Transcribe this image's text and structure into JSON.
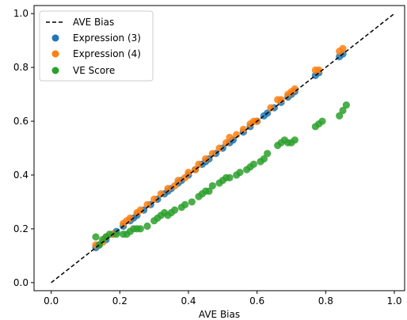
{
  "chart_data": {
    "type": "scatter",
    "title": "",
    "xlabel": "AVE Bias",
    "ylabel": "",
    "xlim": [
      -0.05,
      1.03
    ],
    "ylim": [
      -0.03,
      1.03
    ],
    "xticks": [
      "0.0",
      "0.2",
      "0.4",
      "0.6",
      "0.8",
      "1.0"
    ],
    "yticks": [
      "0.0",
      "0.2",
      "0.4",
      "0.6",
      "0.8",
      "1.0"
    ],
    "grid": false,
    "legend_position": "top-left",
    "reference_line": {
      "name": "AVE Bias",
      "style": "dashed",
      "color": "#000000",
      "x": [
        0.0,
        1.0
      ],
      "y": [
        0.0,
        1.0
      ]
    },
    "series": [
      {
        "name": "Expression (3)",
        "color": "#1f77b4",
        "points": [
          [
            0.13,
            0.13
          ],
          [
            0.14,
            0.14
          ],
          [
            0.16,
            0.16
          ],
          [
            0.18,
            0.18
          ],
          [
            0.19,
            0.19
          ],
          [
            0.21,
            0.21
          ],
          [
            0.23,
            0.23
          ],
          [
            0.24,
            0.24
          ],
          [
            0.25,
            0.25
          ],
          [
            0.27,
            0.27
          ],
          [
            0.29,
            0.29
          ],
          [
            0.31,
            0.31
          ],
          [
            0.33,
            0.33
          ],
          [
            0.34,
            0.34
          ],
          [
            0.35,
            0.35
          ],
          [
            0.37,
            0.37
          ],
          [
            0.38,
            0.38
          ],
          [
            0.4,
            0.4
          ],
          [
            0.42,
            0.42
          ],
          [
            0.44,
            0.44
          ],
          [
            0.45,
            0.45
          ],
          [
            0.46,
            0.46
          ],
          [
            0.48,
            0.48
          ],
          [
            0.5,
            0.5
          ],
          [
            0.52,
            0.52
          ],
          [
            0.53,
            0.53
          ],
          [
            0.56,
            0.56
          ],
          [
            0.58,
            0.58
          ],
          [
            0.6,
            0.6
          ],
          [
            0.62,
            0.62
          ],
          [
            0.63,
            0.63
          ],
          [
            0.65,
            0.65
          ],
          [
            0.67,
            0.67
          ],
          [
            0.69,
            0.69
          ],
          [
            0.7,
            0.7
          ],
          [
            0.71,
            0.71
          ],
          [
            0.77,
            0.77
          ],
          [
            0.78,
            0.78
          ],
          [
            0.84,
            0.84
          ],
          [
            0.85,
            0.85
          ]
        ]
      },
      {
        "name": "Expression (4)",
        "color": "#ff7f0e",
        "points": [
          [
            0.13,
            0.14
          ],
          [
            0.15,
            0.15
          ],
          [
            0.16,
            0.17
          ],
          [
            0.18,
            0.18
          ],
          [
            0.21,
            0.22
          ],
          [
            0.22,
            0.23
          ],
          [
            0.23,
            0.24
          ],
          [
            0.25,
            0.26
          ],
          [
            0.26,
            0.27
          ],
          [
            0.28,
            0.29
          ],
          [
            0.3,
            0.31
          ],
          [
            0.32,
            0.33
          ],
          [
            0.34,
            0.35
          ],
          [
            0.36,
            0.36
          ],
          [
            0.37,
            0.38
          ],
          [
            0.39,
            0.39
          ],
          [
            0.4,
            0.41
          ],
          [
            0.42,
            0.42
          ],
          [
            0.43,
            0.44
          ],
          [
            0.45,
            0.46
          ],
          [
            0.47,
            0.48
          ],
          [
            0.49,
            0.5
          ],
          [
            0.51,
            0.52
          ],
          [
            0.52,
            0.54
          ],
          [
            0.54,
            0.55
          ],
          [
            0.56,
            0.57
          ],
          [
            0.58,
            0.59
          ],
          [
            0.59,
            0.6
          ],
          [
            0.6,
            0.6
          ],
          [
            0.64,
            0.65
          ],
          [
            0.66,
            0.68
          ],
          [
            0.67,
            0.68
          ],
          [
            0.69,
            0.7
          ],
          [
            0.7,
            0.71
          ],
          [
            0.71,
            0.72
          ],
          [
            0.77,
            0.79
          ],
          [
            0.78,
            0.79
          ],
          [
            0.84,
            0.86
          ],
          [
            0.85,
            0.87
          ]
        ]
      },
      {
        "name": "VE Score",
        "color": "#2ca02c",
        "points": [
          [
            0.13,
            0.17
          ],
          [
            0.14,
            0.14
          ],
          [
            0.15,
            0.16
          ],
          [
            0.16,
            0.17
          ],
          [
            0.17,
            0.18
          ],
          [
            0.19,
            0.18
          ],
          [
            0.21,
            0.18
          ],
          [
            0.22,
            0.18
          ],
          [
            0.23,
            0.19
          ],
          [
            0.24,
            0.2
          ],
          [
            0.25,
            0.2
          ],
          [
            0.26,
            0.2
          ],
          [
            0.28,
            0.21
          ],
          [
            0.3,
            0.23
          ],
          [
            0.31,
            0.24
          ],
          [
            0.32,
            0.25
          ],
          [
            0.33,
            0.26
          ],
          [
            0.34,
            0.25
          ],
          [
            0.35,
            0.26
          ],
          [
            0.36,
            0.27
          ],
          [
            0.38,
            0.28
          ],
          [
            0.39,
            0.29
          ],
          [
            0.41,
            0.3
          ],
          [
            0.43,
            0.32
          ],
          [
            0.44,
            0.33
          ],
          [
            0.45,
            0.34
          ],
          [
            0.46,
            0.34
          ],
          [
            0.47,
            0.36
          ],
          [
            0.49,
            0.37
          ],
          [
            0.5,
            0.38
          ],
          [
            0.51,
            0.39
          ],
          [
            0.52,
            0.39
          ],
          [
            0.54,
            0.4
          ],
          [
            0.55,
            0.41
          ],
          [
            0.57,
            0.42
          ],
          [
            0.58,
            0.43
          ],
          [
            0.59,
            0.44
          ],
          [
            0.61,
            0.45
          ],
          [
            0.62,
            0.46
          ],
          [
            0.63,
            0.48
          ],
          [
            0.66,
            0.51
          ],
          [
            0.67,
            0.52
          ],
          [
            0.68,
            0.53
          ],
          [
            0.69,
            0.52
          ],
          [
            0.7,
            0.52
          ],
          [
            0.71,
            0.53
          ],
          [
            0.77,
            0.58
          ],
          [
            0.78,
            0.59
          ],
          [
            0.79,
            0.6
          ],
          [
            0.84,
            0.62
          ],
          [
            0.85,
            0.64
          ],
          [
            0.86,
            0.66
          ]
        ]
      }
    ]
  }
}
